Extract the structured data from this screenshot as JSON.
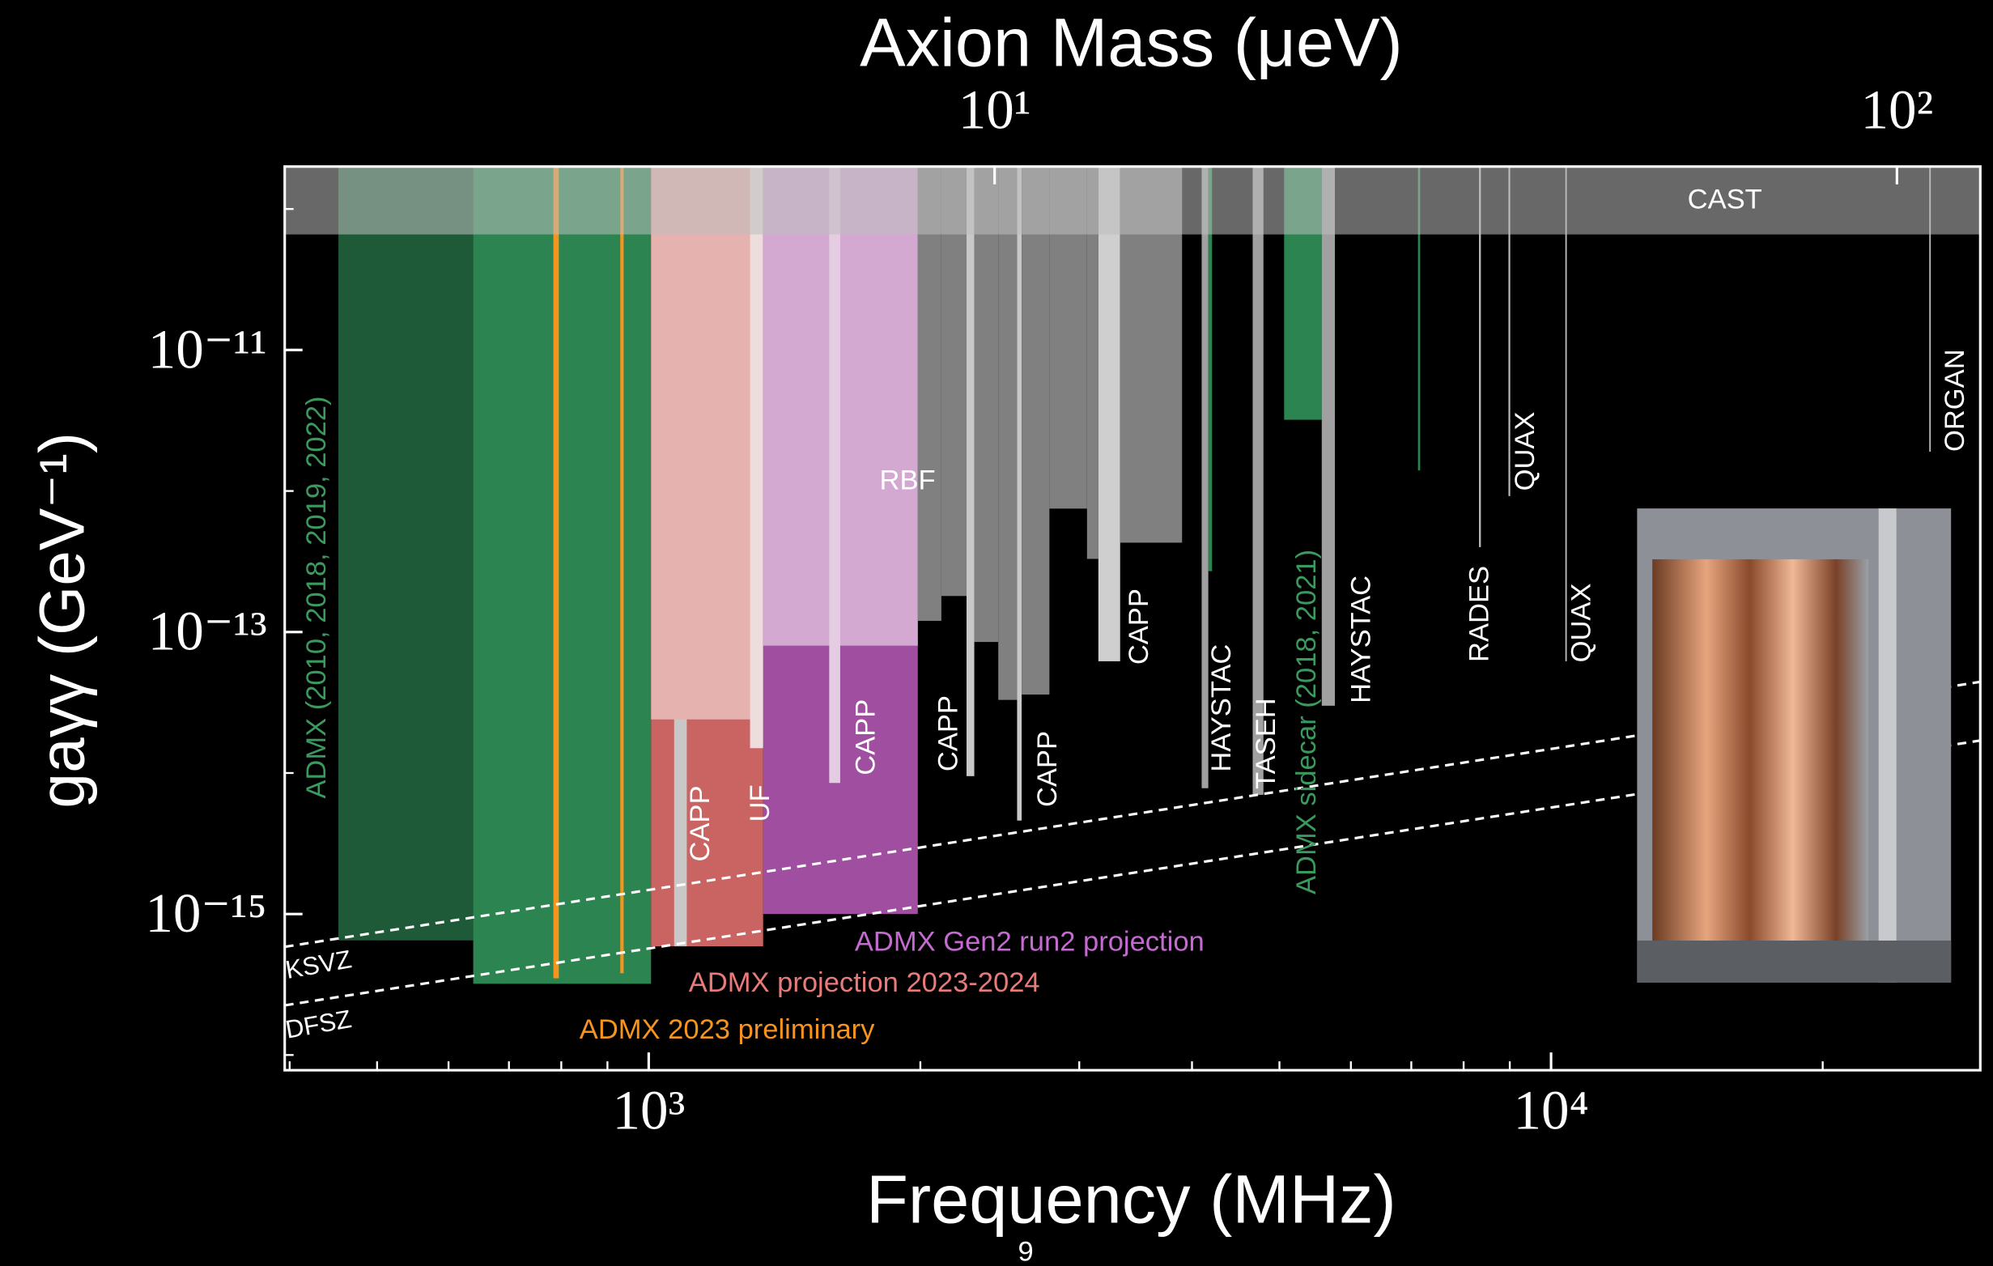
{
  "chart_data": {
    "type": "exclusion",
    "title": "Axion Mass (μeV)",
    "xlabel": "Frequency (MHz)",
    "ylabel": "gaγγ (GeV⁻¹)",
    "page_number": "9",
    "xscale": "log",
    "yscale": "log",
    "xlim": [
      395,
      29900
    ],
    "ylim": [
      7.8e-17,
      2e-10
    ],
    "xticks": [
      {
        "value": 1000,
        "label": "10³"
      },
      {
        "value": 10000,
        "label": "10⁴"
      }
    ],
    "xminor": [
      400,
      500,
      600,
      700,
      800,
      900,
      2000,
      3000,
      4000,
      5000,
      6000,
      7000,
      8000,
      9000,
      20000
    ],
    "yticks": [
      {
        "value": 1e-11,
        "label": "10⁻¹¹"
      },
      {
        "value": 1e-13,
        "label": "10⁻¹³"
      },
      {
        "value": 1e-15,
        "label": "10⁻¹⁵"
      }
    ],
    "yminor": [
      1e-16,
      1e-14,
      1e-12,
      1e-10
    ],
    "x2lim": [
      1.634,
      123.7
    ],
    "x2ticks": [
      {
        "value": 10,
        "label": "10¹"
      },
      {
        "value": 100,
        "label": "10²"
      }
    ],
    "regions": [
      {
        "x": [
          453,
          639
        ],
        "y": 6.5e-16,
        "color": "#1f5a38"
      },
      {
        "x": [
          639,
          1006
        ],
        "y": 3.2e-16,
        "color": "#2c8550"
      },
      {
        "x": [
          784,
          795
        ],
        "y": 3.5e-16,
        "color": "#f7941d"
      },
      {
        "x": [
          930,
          938
        ],
        "y": 3.8e-16,
        "color": "#f7941d"
      },
      {
        "x": [
          1006,
          1339
        ],
        "y": 5.9e-16,
        "color": "#c96462"
      },
      {
        "x": [
          1067,
          1102
        ],
        "y": 5.9e-16,
        "color": "#c8c8c8"
      },
      {
        "x": [
          1339,
          1987
        ],
        "y": 1e-15,
        "color": "#a04ea0"
      },
      {
        "x": [
          1006,
          1295
        ],
        "y": 2.4e-14,
        "color": "#e6b2b0"
      },
      {
        "x": [
          1295,
          1339
        ],
        "y": 1.5e-14,
        "color": "#eedddd"
      },
      {
        "x": [
          1339,
          1987
        ],
        "y": 8e-14,
        "color": "#d3a8d1"
      },
      {
        "x": [
          1585,
          1630
        ],
        "y": 8.5e-15,
        "color": "#e4cce3"
      },
      {
        "x": [
          1987,
          2110
        ],
        "y": 1.2e-13,
        "color": "#808080"
      },
      {
        "x": [
          2110,
          2250
        ],
        "y": 1.8e-13,
        "color": "#808080"
      },
      {
        "x": [
          2250,
          2295
        ],
        "y": 9.5e-15,
        "color": "#c8c8c8"
      },
      {
        "x": [
          2295,
          2440
        ],
        "y": 8.5e-14,
        "color": "#808080"
      },
      {
        "x": [
          2440,
          2560
        ],
        "y": 3.3e-14,
        "color": "#808080"
      },
      {
        "x": [
          2560,
          2590
        ],
        "y": 4.6e-15,
        "color": "#c8c8c8"
      },
      {
        "x": [
          2590,
          2780
        ],
        "y": 3.6e-14,
        "color": "#808080"
      },
      {
        "x": [
          2780,
          3060
        ],
        "y": 7.5e-13,
        "color": "#808080"
      },
      {
        "x": [
          3060,
          3150
        ],
        "y": 3.3e-13,
        "color": "#808080"
      },
      {
        "x": [
          3150,
          3330
        ],
        "y": 6.2e-14,
        "color": "#cfcfcf"
      },
      {
        "x": [
          3330,
          3900
        ],
        "y": 4.3e-13,
        "color": "#808080"
      },
      {
        "x": [
          4100,
          4170
        ],
        "y": 7.8e-15,
        "color": "#a0a0a0"
      },
      {
        "x": [
          4170,
          4210
        ],
        "y": 2.7e-13,
        "color": "#2c8550"
      },
      {
        "x": [
          4670,
          4800
        ],
        "y": 7e-15,
        "color": "#a0a0a0"
      },
      {
        "x": [
          5060,
          5570
        ],
        "y": 3.2e-12,
        "color": "#2c8550"
      },
      {
        "x": [
          5570,
          5760
        ],
        "y": 3e-14,
        "color": "#a0a0a0"
      },
      {
        "x": [
          7120,
          7160
        ],
        "y": 1.4e-12,
        "color": "#2c8550"
      },
      {
        "x": [
          8320,
          8360
        ],
        "y": 4e-13,
        "color": "#bbbbbb"
      },
      {
        "x": [
          8970,
          9010
        ],
        "y": 9.2e-13,
        "color": "#bbbbbb"
      },
      {
        "x": [
          10370,
          10410
        ],
        "y": 6.2e-14,
        "color": "#bbbbbb"
      },
      {
        "x": [
          26250,
          26350
        ],
        "y": 1.9e-12,
        "color": "#bbbbbb"
      },
      {
        "x": [
          395,
          29900
        ],
        "y": 6.6e-11,
        "color": "#bdbdbd"
      }
    ],
    "lines": [
      {
        "name": "KSVZ",
        "x": [
          395,
          29900
        ],
        "values": [
          5.85e-16,
          4.43e-14
        ],
        "color": "#ffffff"
      },
      {
        "name": "DFSZ",
        "x": [
          395,
          29900
        ],
        "values": [
          2.25e-16,
          1.7e-14
        ],
        "color": "#ffffff"
      }
    ],
    "annotations": [
      {
        "text": "CAST",
        "color": "#ffffff"
      },
      {
        "text": "ADMX (2010, 2018, 2019, 2022)",
        "color": "#3a9a5e"
      },
      {
        "text": "RBF",
        "color": "#ffffff"
      },
      {
        "text": "CAPP",
        "color": "#ffffff"
      },
      {
        "text": "UF",
        "color": "#ffffff"
      },
      {
        "text": "CAPP",
        "color": "#ffffff"
      },
      {
        "text": "CAPP",
        "color": "#ffffff"
      },
      {
        "text": "CAPP",
        "color": "#ffffff"
      },
      {
        "text": "CAPP",
        "color": "#ffffff"
      },
      {
        "text": "HAYSTAC",
        "color": "#ffffff"
      },
      {
        "text": "TASEH",
        "color": "#ffffff"
      },
      {
        "text": "ADMX sidecar (2018, 2021)",
        "color": "#3a9a5e"
      },
      {
        "text": "HAYSTAC",
        "color": "#ffffff"
      },
      {
        "text": "RADES",
        "color": "#ffffff"
      },
      {
        "text": "QUAX",
        "color": "#ffffff"
      },
      {
        "text": "QUAX",
        "color": "#ffffff"
      },
      {
        "text": "ORGAN",
        "color": "#ffffff"
      },
      {
        "text": "ADMX Gen2 run2 projection",
        "color": "#c46ad0"
      },
      {
        "text": "ADMX projection 2023-2024",
        "color": "#e87a7a"
      },
      {
        "text": "ADMX 2023 preliminary",
        "color": "#f7941d"
      }
    ]
  }
}
